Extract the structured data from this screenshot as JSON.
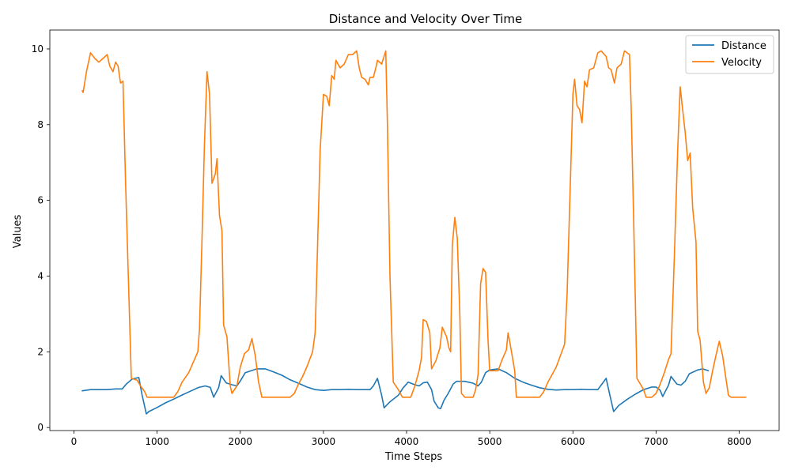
{
  "chart_data": {
    "type": "line",
    "title": "Distance and Velocity Over Time",
    "xlabel": "Time Steps",
    "ylabel": "Values",
    "xlim": [
      -290,
      8480
    ],
    "ylim": [
      -0.08,
      10.5
    ],
    "xticks": [
      0,
      1000,
      2000,
      3000,
      4000,
      5000,
      6000,
      7000,
      8000
    ],
    "yticks": [
      0,
      2,
      4,
      6,
      8,
      10
    ],
    "legend_position": "top-right",
    "grid": false,
    "series": [
      {
        "name": "Distance",
        "color": "#1f77b4",
        "points": [
          [
            100,
            0.97
          ],
          [
            200,
            1.0
          ],
          [
            300,
            1.0
          ],
          [
            400,
            1.0
          ],
          [
            500,
            1.02
          ],
          [
            580,
            1.02
          ],
          [
            630,
            1.15
          ],
          [
            700,
            1.28
          ],
          [
            780,
            1.32
          ],
          [
            820,
            0.85
          ],
          [
            870,
            0.36
          ],
          [
            900,
            0.42
          ],
          [
            1000,
            0.53
          ],
          [
            1100,
            0.65
          ],
          [
            1200,
            0.75
          ],
          [
            1300,
            0.86
          ],
          [
            1400,
            0.96
          ],
          [
            1500,
            1.06
          ],
          [
            1580,
            1.1
          ],
          [
            1640,
            1.06
          ],
          [
            1680,
            0.8
          ],
          [
            1740,
            1.05
          ],
          [
            1770,
            1.37
          ],
          [
            1830,
            1.18
          ],
          [
            1900,
            1.13
          ],
          [
            1960,
            1.1
          ],
          [
            2000,
            1.23
          ],
          [
            2060,
            1.45
          ],
          [
            2200,
            1.55
          ],
          [
            2300,
            1.55
          ],
          [
            2400,
            1.47
          ],
          [
            2500,
            1.38
          ],
          [
            2600,
            1.26
          ],
          [
            2700,
            1.17
          ],
          [
            2800,
            1.07
          ],
          [
            2900,
            1.0
          ],
          [
            3000,
            0.98
          ],
          [
            3100,
            1.0
          ],
          [
            3200,
            1.0
          ],
          [
            3300,
            1.01
          ],
          [
            3400,
            1.0
          ],
          [
            3500,
            1.0
          ],
          [
            3560,
            1.0
          ],
          [
            3600,
            1.1
          ],
          [
            3650,
            1.3
          ],
          [
            3700,
            0.85
          ],
          [
            3730,
            0.52
          ],
          [
            3800,
            0.68
          ],
          [
            3900,
            0.85
          ],
          [
            3960,
            1.05
          ],
          [
            4020,
            1.2
          ],
          [
            4100,
            1.13
          ],
          [
            4150,
            1.1
          ],
          [
            4200,
            1.18
          ],
          [
            4250,
            1.2
          ],
          [
            4300,
            1.0
          ],
          [
            4330,
            0.7
          ],
          [
            4380,
            0.52
          ],
          [
            4410,
            0.5
          ],
          [
            4450,
            0.72
          ],
          [
            4500,
            0.9
          ],
          [
            4560,
            1.15
          ],
          [
            4600,
            1.22
          ],
          [
            4700,
            1.22
          ],
          [
            4800,
            1.17
          ],
          [
            4860,
            1.1
          ],
          [
            4900,
            1.2
          ],
          [
            4950,
            1.45
          ],
          [
            5000,
            1.52
          ],
          [
            5100,
            1.55
          ],
          [
            5200,
            1.45
          ],
          [
            5300,
            1.3
          ],
          [
            5400,
            1.2
          ],
          [
            5500,
            1.12
          ],
          [
            5600,
            1.05
          ],
          [
            5700,
            1.01
          ],
          [
            5800,
            0.99
          ],
          [
            5900,
            1.0
          ],
          [
            6000,
            1.0
          ],
          [
            6100,
            1.01
          ],
          [
            6200,
            1.0
          ],
          [
            6300,
            1.0
          ],
          [
            6400,
            1.3
          ],
          [
            6450,
            0.8
          ],
          [
            6490,
            0.42
          ],
          [
            6550,
            0.58
          ],
          [
            6650,
            0.74
          ],
          [
            6750,
            0.88
          ],
          [
            6850,
            1.0
          ],
          [
            6950,
            1.07
          ],
          [
            7000,
            1.07
          ],
          [
            7050,
            0.98
          ],
          [
            7080,
            0.82
          ],
          [
            7150,
            1.12
          ],
          [
            7180,
            1.35
          ],
          [
            7250,
            1.15
          ],
          [
            7300,
            1.12
          ],
          [
            7350,
            1.22
          ],
          [
            7400,
            1.42
          ],
          [
            7500,
            1.52
          ],
          [
            7560,
            1.55
          ],
          [
            7630,
            1.5
          ]
        ]
      },
      {
        "name": "Velocity",
        "color": "#ff7f0e",
        "points": [
          [
            100,
            8.9
          ],
          [
            110,
            8.85
          ],
          [
            150,
            9.4
          ],
          [
            200,
            9.9
          ],
          [
            250,
            9.75
          ],
          [
            300,
            9.65
          ],
          [
            350,
            9.75
          ],
          [
            400,
            9.85
          ],
          [
            430,
            9.55
          ],
          [
            470,
            9.4
          ],
          [
            500,
            9.65
          ],
          [
            530,
            9.55
          ],
          [
            560,
            9.1
          ],
          [
            590,
            9.15
          ],
          [
            620,
            6.5
          ],
          [
            650,
            4.3
          ],
          [
            690,
            1.3
          ],
          [
            760,
            1.25
          ],
          [
            800,
            1.1
          ],
          [
            850,
            0.95
          ],
          [
            880,
            0.8
          ],
          [
            1000,
            0.8
          ],
          [
            1100,
            0.8
          ],
          [
            1200,
            0.8
          ],
          [
            1250,
            0.95
          ],
          [
            1300,
            1.2
          ],
          [
            1380,
            1.45
          ],
          [
            1450,
            1.8
          ],
          [
            1490,
            2.0
          ],
          [
            1510,
            2.6
          ],
          [
            1540,
            5.0
          ],
          [
            1570,
            7.5
          ],
          [
            1600,
            9.4
          ],
          [
            1630,
            8.8
          ],
          [
            1660,
            6.45
          ],
          [
            1700,
            6.7
          ],
          [
            1720,
            7.1
          ],
          [
            1750,
            5.6
          ],
          [
            1780,
            5.2
          ],
          [
            1800,
            2.7
          ],
          [
            1840,
            2.4
          ],
          [
            1880,
            1.1
          ],
          [
            1900,
            0.9
          ],
          [
            1960,
            1.1
          ],
          [
            2000,
            1.6
          ],
          [
            2050,
            1.95
          ],
          [
            2100,
            2.05
          ],
          [
            2140,
            2.35
          ],
          [
            2180,
            1.9
          ],
          [
            2220,
            1.2
          ],
          [
            2260,
            0.8
          ],
          [
            2400,
            0.8
          ],
          [
            2500,
            0.8
          ],
          [
            2600,
            0.8
          ],
          [
            2650,
            0.9
          ],
          [
            2700,
            1.15
          ],
          [
            2750,
            1.35
          ],
          [
            2800,
            1.6
          ],
          [
            2870,
            2.0
          ],
          [
            2900,
            2.5
          ],
          [
            2930,
            4.8
          ],
          [
            2960,
            7.3
          ],
          [
            3000,
            8.8
          ],
          [
            3040,
            8.75
          ],
          [
            3070,
            8.5
          ],
          [
            3100,
            9.3
          ],
          [
            3130,
            9.2
          ],
          [
            3150,
            9.7
          ],
          [
            3200,
            9.5
          ],
          [
            3250,
            9.6
          ],
          [
            3300,
            9.85
          ],
          [
            3350,
            9.85
          ],
          [
            3400,
            9.95
          ],
          [
            3430,
            9.5
          ],
          [
            3460,
            9.25
          ],
          [
            3500,
            9.2
          ],
          [
            3540,
            9.05
          ],
          [
            3560,
            9.25
          ],
          [
            3600,
            9.25
          ],
          [
            3630,
            9.5
          ],
          [
            3650,
            9.7
          ],
          [
            3700,
            9.6
          ],
          [
            3750,
            9.95
          ],
          [
            3770,
            8.0
          ],
          [
            3800,
            4.0
          ],
          [
            3840,
            1.2
          ],
          [
            3900,
            1.0
          ],
          [
            3950,
            0.8
          ],
          [
            4050,
            0.8
          ],
          [
            4100,
            1.1
          ],
          [
            4150,
            1.5
          ],
          [
            4180,
            1.85
          ],
          [
            4200,
            2.85
          ],
          [
            4240,
            2.8
          ],
          [
            4280,
            2.5
          ],
          [
            4300,
            1.55
          ],
          [
            4350,
            1.75
          ],
          [
            4400,
            2.1
          ],
          [
            4430,
            2.65
          ],
          [
            4480,
            2.4
          ],
          [
            4510,
            2.1
          ],
          [
            4530,
            2.0
          ],
          [
            4550,
            4.8
          ],
          [
            4580,
            5.55
          ],
          [
            4610,
            5.0
          ],
          [
            4640,
            3.0
          ],
          [
            4660,
            0.9
          ],
          [
            4700,
            0.8
          ],
          [
            4800,
            0.8
          ],
          [
            4830,
            1.0
          ],
          [
            4860,
            1.4
          ],
          [
            4890,
            3.8
          ],
          [
            4920,
            4.2
          ],
          [
            4950,
            4.1
          ],
          [
            4980,
            2.3
          ],
          [
            5000,
            1.5
          ],
          [
            5100,
            1.5
          ],
          [
            5150,
            1.8
          ],
          [
            5200,
            2.05
          ],
          [
            5220,
            2.5
          ],
          [
            5250,
            2.15
          ],
          [
            5300,
            1.5
          ],
          [
            5320,
            0.8
          ],
          [
            5400,
            0.8
          ],
          [
            5500,
            0.8
          ],
          [
            5600,
            0.8
          ],
          [
            5650,
            0.95
          ],
          [
            5700,
            1.2
          ],
          [
            5750,
            1.4
          ],
          [
            5800,
            1.6
          ],
          [
            5850,
            1.9
          ],
          [
            5900,
            2.2
          ],
          [
            5930,
            3.5
          ],
          [
            5970,
            6.5
          ],
          [
            6000,
            8.8
          ],
          [
            6020,
            9.2
          ],
          [
            6050,
            8.5
          ],
          [
            6080,
            8.4
          ],
          [
            6110,
            8.05
          ],
          [
            6140,
            9.15
          ],
          [
            6170,
            9.0
          ],
          [
            6200,
            9.45
          ],
          [
            6250,
            9.5
          ],
          [
            6300,
            9.9
          ],
          [
            6340,
            9.95
          ],
          [
            6400,
            9.8
          ],
          [
            6430,
            9.5
          ],
          [
            6460,
            9.45
          ],
          [
            6500,
            9.1
          ],
          [
            6530,
            9.5
          ],
          [
            6580,
            9.6
          ],
          [
            6620,
            9.95
          ],
          [
            6680,
            9.85
          ],
          [
            6700,
            8.5
          ],
          [
            6740,
            4.5
          ],
          [
            6770,
            1.3
          ],
          [
            6850,
            1.0
          ],
          [
            6880,
            0.8
          ],
          [
            6950,
            0.8
          ],
          [
            7000,
            0.9
          ],
          [
            7050,
            1.15
          ],
          [
            7100,
            1.45
          ],
          [
            7150,
            1.8
          ],
          [
            7180,
            1.95
          ],
          [
            7220,
            4.5
          ],
          [
            7260,
            7.3
          ],
          [
            7290,
            9.0
          ],
          [
            7320,
            8.4
          ],
          [
            7350,
            7.8
          ],
          [
            7380,
            7.05
          ],
          [
            7410,
            7.25
          ],
          [
            7440,
            5.8
          ],
          [
            7480,
            4.9
          ],
          [
            7500,
            2.55
          ],
          [
            7530,
            2.3
          ],
          [
            7570,
            1.2
          ],
          [
            7600,
            0.9
          ],
          [
            7640,
            1.05
          ],
          [
            7680,
            1.5
          ],
          [
            7720,
            1.9
          ],
          [
            7760,
            2.28
          ],
          [
            7800,
            1.9
          ],
          [
            7840,
            1.3
          ],
          [
            7870,
            0.85
          ],
          [
            7900,
            0.8
          ],
          [
            8000,
            0.8
          ],
          [
            8080,
            0.8
          ]
        ]
      }
    ]
  }
}
